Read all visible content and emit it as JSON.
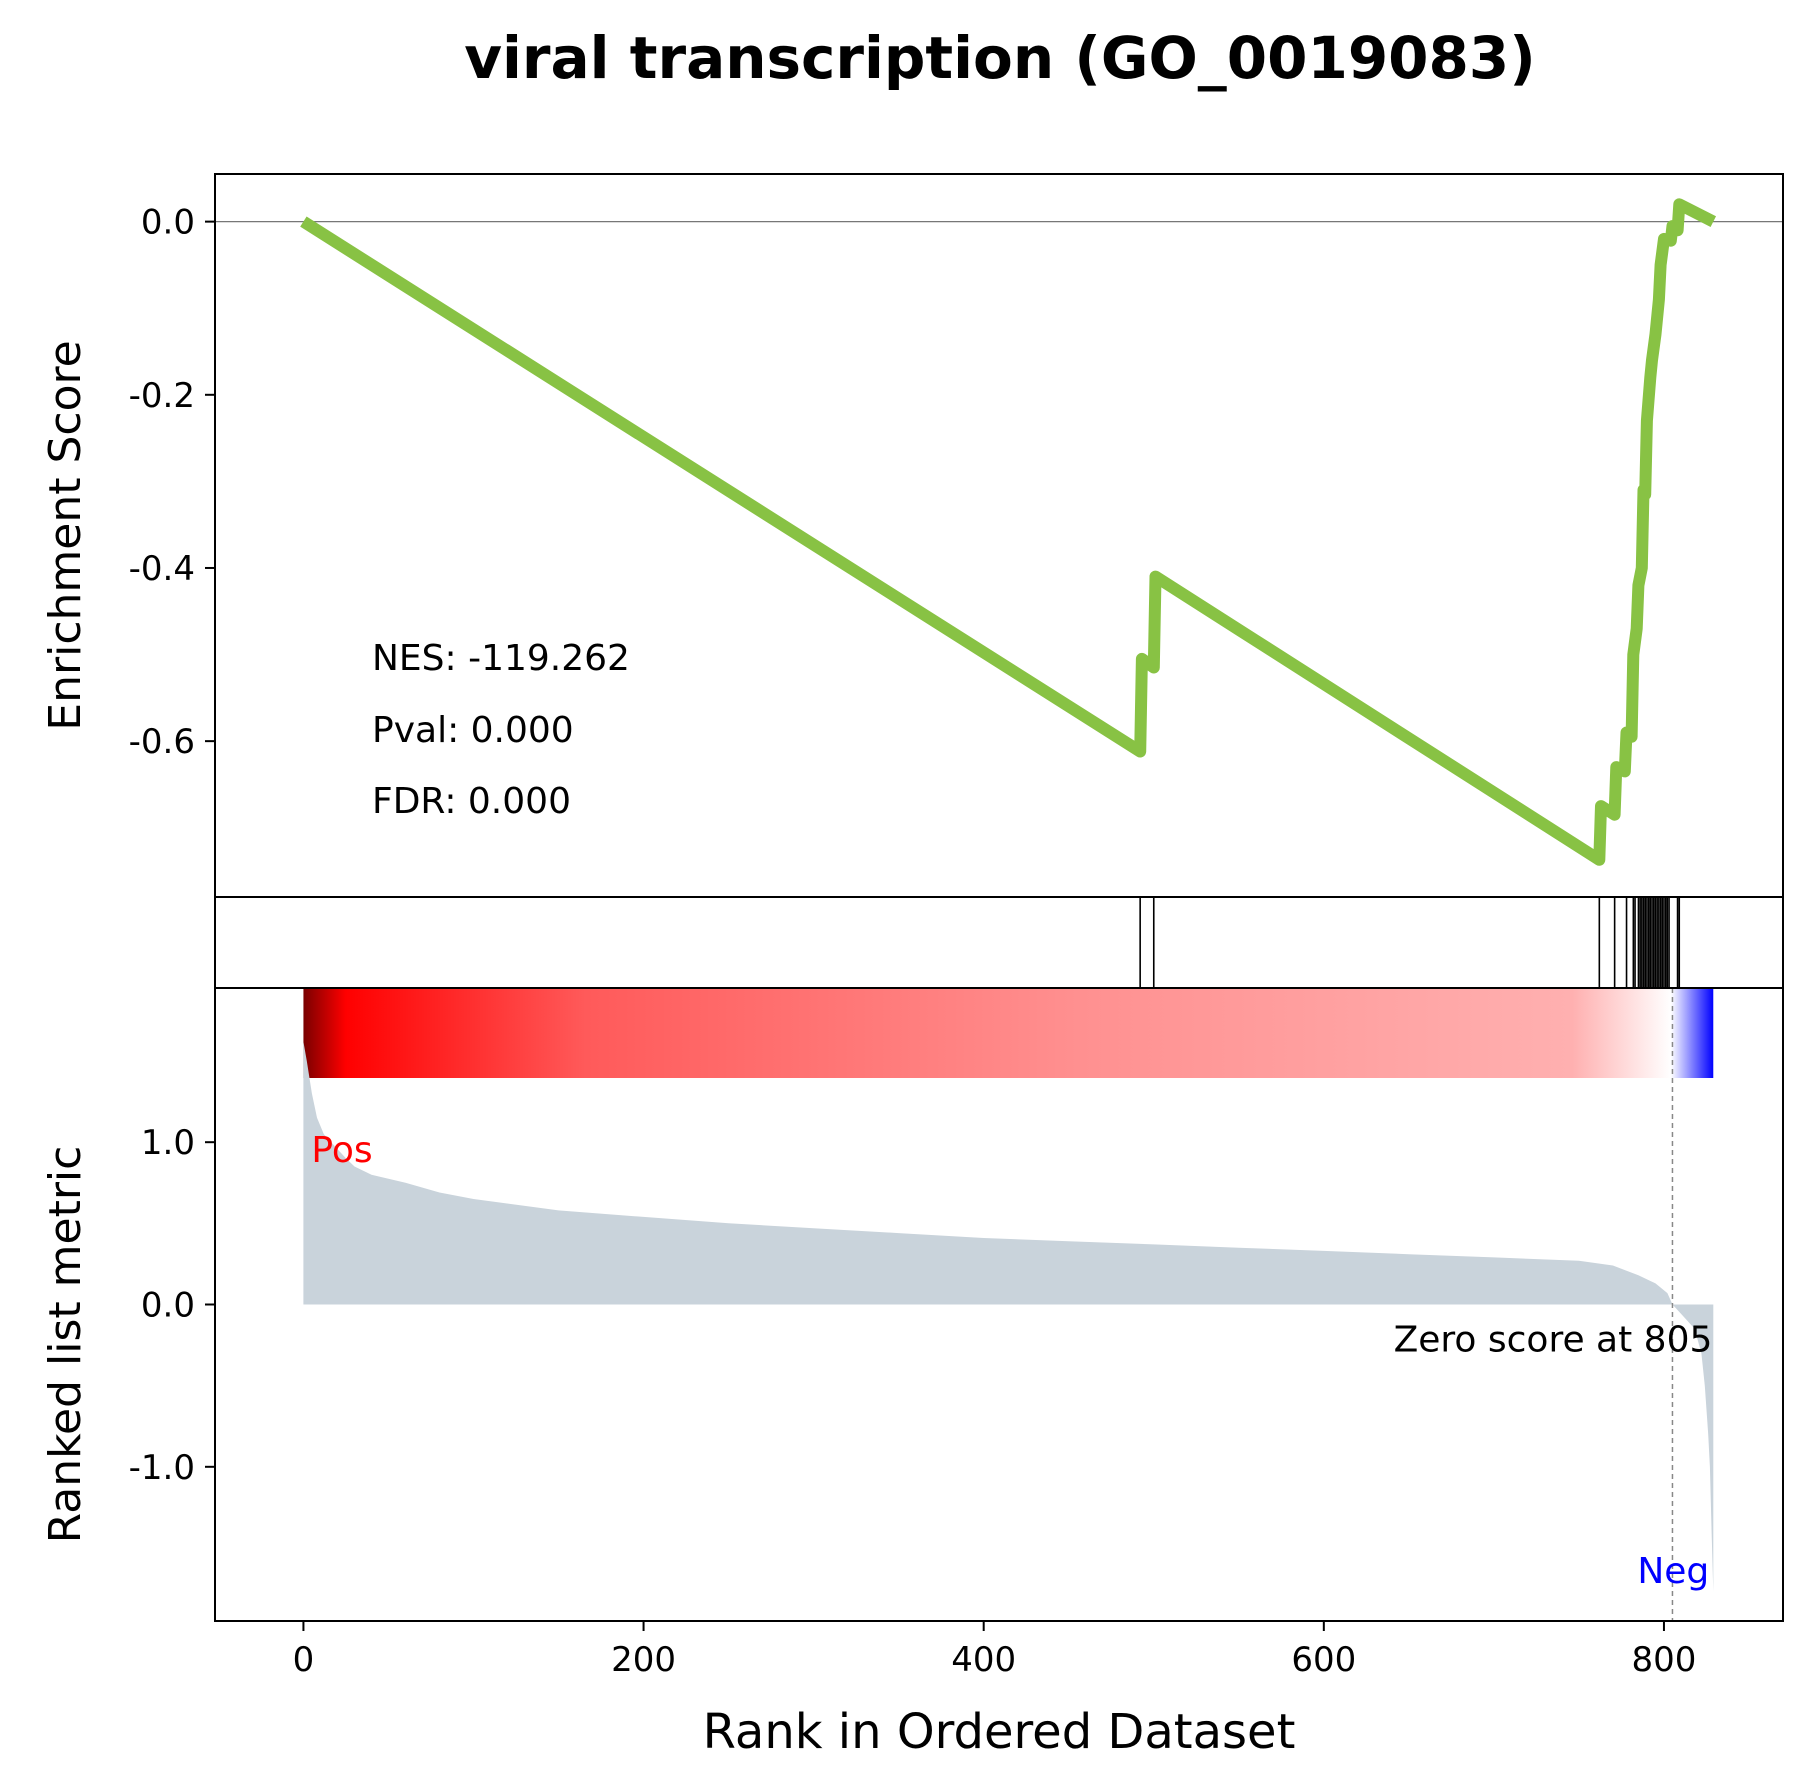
{
  "chart_data": {
    "type": "line",
    "title": "viral transcription (GO_0019083)",
    "n_genes": 829,
    "xlabel": "Rank in Ordered Dataset",
    "xlim": [
      -52,
      870
    ],
    "x_ticks": [
      0,
      200,
      400,
      600,
      800
    ],
    "x_tick_labels": [
      "0",
      "200",
      "400",
      "600",
      "800"
    ],
    "es_panel": {
      "ylabel": "Enrichment Score",
      "ylim": [
        -0.78,
        0.055
      ],
      "y_ticks": [
        0.0,
        -0.2,
        -0.4,
        -0.6
      ],
      "y_tick_labels": [
        "0.0",
        "-0.2",
        "-0.4",
        "-0.6"
      ],
      "zero_line": true,
      "line_color": "#88c244",
      "running_es": [
        {
          "x": 0,
          "y": 0.0
        },
        {
          "x": 492,
          "y": -0.612
        },
        {
          "x": 493,
          "y": -0.505
        },
        {
          "x": 500,
          "y": -0.515
        },
        {
          "x": 501,
          "y": -0.41
        },
        {
          "x": 762,
          "y": -0.737
        },
        {
          "x": 763,
          "y": -0.675
        },
        {
          "x": 771,
          "y": -0.685
        },
        {
          "x": 772,
          "y": -0.63
        },
        {
          "x": 777,
          "y": -0.635
        },
        {
          "x": 778,
          "y": -0.59
        },
        {
          "x": 781,
          "y": -0.595
        },
        {
          "x": 782,
          "y": -0.5
        },
        {
          "x": 784,
          "y": -0.47
        },
        {
          "x": 785,
          "y": -0.42
        },
        {
          "x": 787,
          "y": -0.4
        },
        {
          "x": 788,
          "y": -0.31
        },
        {
          "x": 789,
          "y": -0.315
        },
        {
          "x": 790,
          "y": -0.23
        },
        {
          "x": 792,
          "y": -0.18
        },
        {
          "x": 793,
          "y": -0.16
        },
        {
          "x": 795,
          "y": -0.13
        },
        {
          "x": 797,
          "y": -0.09
        },
        {
          "x": 798,
          "y": -0.05
        },
        {
          "x": 800,
          "y": -0.02
        },
        {
          "x": 804,
          "y": -0.022
        },
        {
          "x": 805,
          "y": -0.005
        },
        {
          "x": 808,
          "y": -0.01
        },
        {
          "x": 809,
          "y": 0.02
        },
        {
          "x": 829,
          "y": 0.0
        }
      ],
      "annotations": [
        "NES: -119.262",
        "Pval: 0.000",
        "FDR: 0.000"
      ]
    },
    "hits": [
      492,
      500,
      762,
      771,
      778,
      782,
      783,
      785,
      786,
      787,
      788,
      789,
      790,
      791,
      792,
      793,
      794,
      795,
      796,
      797,
      798,
      799,
      800,
      801,
      802,
      803,
      808,
      809
    ],
    "heatmap": {
      "colors_from_pos_to_neg": [
        "#7a0000",
        "#ff0000",
        "#ff5a5a",
        "#ff9090",
        "#ffb0b0",
        "#ffffff",
        "#0000ff"
      ]
    },
    "ranked_metric": {
      "ylabel": "Ranked list metric",
      "ylim": [
        -1.95,
        1.95
      ],
      "y_ticks": [
        1.0,
        0.0,
        -1.0
      ],
      "y_tick_labels": [
        "1.0",
        "0.0",
        "-1.0"
      ],
      "fill_color": "#c9d3db",
      "points": [
        {
          "x": 0,
          "y": 1.62
        },
        {
          "x": 2,
          "y": 1.5
        },
        {
          "x": 5,
          "y": 1.3
        },
        {
          "x": 8,
          "y": 1.15
        },
        {
          "x": 12,
          "y": 1.05
        },
        {
          "x": 18,
          "y": 0.98
        },
        {
          "x": 25,
          "y": 0.9
        },
        {
          "x": 30,
          "y": 0.85
        },
        {
          "x": 40,
          "y": 0.8
        },
        {
          "x": 60,
          "y": 0.75
        },
        {
          "x": 80,
          "y": 0.69
        },
        {
          "x": 100,
          "y": 0.65
        },
        {
          "x": 150,
          "y": 0.58
        },
        {
          "x": 200,
          "y": 0.54
        },
        {
          "x": 250,
          "y": 0.5
        },
        {
          "x": 300,
          "y": 0.47
        },
        {
          "x": 350,
          "y": 0.44
        },
        {
          "x": 400,
          "y": 0.41
        },
        {
          "x": 450,
          "y": 0.39
        },
        {
          "x": 500,
          "y": 0.37
        },
        {
          "x": 550,
          "y": 0.35
        },
        {
          "x": 600,
          "y": 0.33
        },
        {
          "x": 650,
          "y": 0.31
        },
        {
          "x": 700,
          "y": 0.29
        },
        {
          "x": 750,
          "y": 0.27
        },
        {
          "x": 770,
          "y": 0.24
        },
        {
          "x": 785,
          "y": 0.18
        },
        {
          "x": 795,
          "y": 0.13
        },
        {
          "x": 802,
          "y": 0.07
        },
        {
          "x": 805,
          "y": 0.0
        },
        {
          "x": 812,
          "y": -0.08
        },
        {
          "x": 818,
          "y": -0.15
        },
        {
          "x": 822,
          "y": -0.3
        },
        {
          "x": 824,
          "y": -0.5
        },
        {
          "x": 826,
          "y": -0.8
        },
        {
          "x": 827,
          "y": -1.0
        },
        {
          "x": 828,
          "y": -1.4
        },
        {
          "x": 829,
          "y": -1.77
        }
      ],
      "zero_cross_at": 805,
      "zero_label": "Zero score at 805",
      "pos_label": "Pos",
      "neg_label": "Neg",
      "pos_color": "#ff0000",
      "neg_color": "#0000ff"
    }
  }
}
